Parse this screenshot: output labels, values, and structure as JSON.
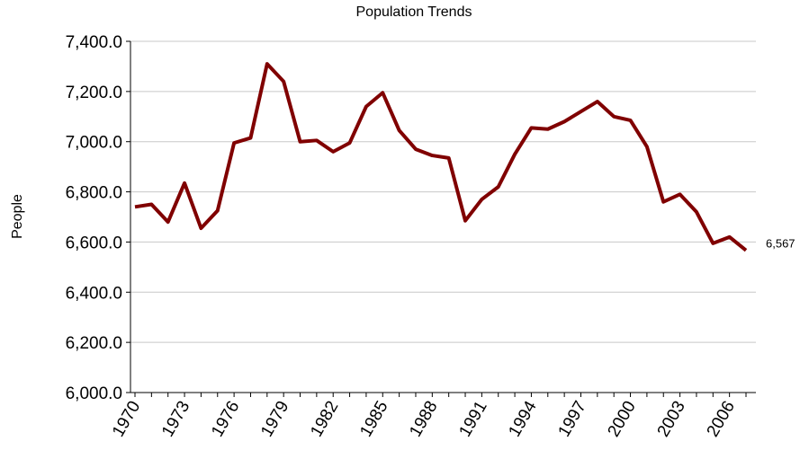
{
  "chart_data": {
    "type": "line",
    "title": "Population Trends",
    "y_label": "People",
    "categories": [
      "1970",
      null,
      null,
      "1973",
      null,
      null,
      "1976",
      null,
      null,
      "1979",
      null,
      null,
      "1982",
      null,
      null,
      "1985",
      null,
      null,
      "1988",
      null,
      null,
      "1991",
      null,
      null,
      "1994",
      null,
      null,
      "1997",
      null,
      null,
      "2000",
      null,
      null,
      "2003",
      null,
      null,
      "2006",
      null
    ],
    "series": [
      {
        "name": "People",
        "color": "#800000",
        "values": [
          6740,
          6750,
          6680,
          6835,
          6655,
          6725,
          6995,
          7015,
          7310,
          7240,
          7000,
          7005,
          6960,
          6995,
          7140,
          7195,
          7045,
          6970,
          6945,
          6935,
          6685,
          6770,
          6820,
          6950,
          7055,
          7050,
          7080,
          7120,
          7160,
          7100,
          7085,
          6980,
          6760,
          6790,
          6720,
          6595,
          6620,
          6567
        ],
        "value_labels": [
          null,
          null,
          null,
          null,
          null,
          null,
          null,
          null,
          null,
          null,
          null,
          null,
          null,
          null,
          null,
          null,
          null,
          null,
          null,
          null,
          null,
          null,
          null,
          null,
          null,
          null,
          null,
          null,
          null,
          null,
          null,
          null,
          null,
          null,
          null,
          null,
          null,
          "6,567"
        ]
      }
    ],
    "ylim": [
      6000,
      7400
    ],
    "yticks": [
      {
        "value": 6000,
        "label": "6,000.0"
      },
      {
        "value": 6200,
        "label": "6,200.0"
      },
      {
        "value": 6400,
        "label": "6,400.0"
      },
      {
        "value": 6600,
        "label": "6,600.0"
      },
      {
        "value": 6800,
        "label": "6,800.0"
      },
      {
        "value": 7000,
        "label": "7,000.0"
      },
      {
        "value": 7200,
        "label": "7,200.0"
      },
      {
        "value": 7400,
        "label": "7,400.0"
      }
    ],
    "grid": true
  }
}
